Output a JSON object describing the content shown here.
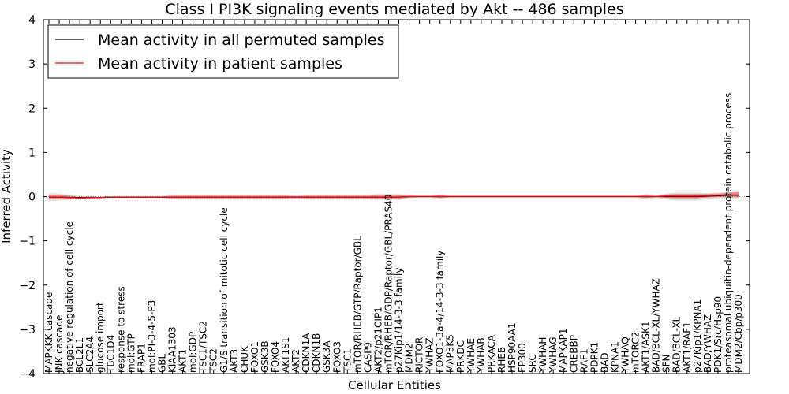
{
  "chart_data": {
    "type": "line",
    "title": "Class I PI3K signaling events mediated by Akt -- 486 samples",
    "xlabel": "Cellular Entities",
    "ylabel": "Inferred Activity",
    "ylim": [
      -4,
      4
    ],
    "yticks": [
      "4",
      "3",
      "2",
      "1",
      "0",
      "−1",
      "−2",
      "−3",
      "−4"
    ],
    "ytick_values": [
      4,
      3,
      2,
      1,
      0,
      -1,
      -2,
      -3,
      -4
    ],
    "legend": {
      "placement": "top-left",
      "entries": [
        {
          "label": "Mean activity in all permuted samples",
          "color": "#000000"
        },
        {
          "label": "Mean activity in patient samples",
          "color": "#ff0000"
        }
      ]
    },
    "categories": [
      "MAPKKK cascade",
      "JNK cascade",
      "negative regulation of cell cycle",
      "BCL2L1",
      "SLC2A4",
      "glucose import",
      "TBC1D4",
      "response to stress",
      "mol:GTP",
      "FRAP1",
      "mol:PI-3-4-5-P3",
      "GBL",
      "KIAA1303",
      "AKT1",
      "mol:GDP",
      "TSC1/TSC2",
      "TSC2",
      "G1/S transition of mitotic cell cycle",
      "AKT3",
      "CHUK",
      "FOXO1",
      "GSK3B",
      "FOXO4",
      "AKT1S1",
      "AKT2",
      "CDKN1A",
      "CDKN1B",
      "GSK3A",
      "FOXO3",
      "TSC1",
      "mTOR/RHEB/GTP/Raptor/GBL",
      "CASP9",
      "AKT2/p21CIP1",
      "mTOR/RHEB/GDP/Raptor/GBL/PRAS40",
      "p27Kip1/14-3-3 family",
      "MDM2",
      "RICTOR",
      "YWHAZ",
      "FOXO1-3a-4/14-3-3 family",
      "MAP3K5",
      "PRKDC",
      "YWHAE",
      "YWHAB",
      "PRKACA",
      "RHEB",
      "HSP90AA1",
      "EP300",
      "SRC",
      "YWHAH",
      "YWHAG",
      "MAPKAP1",
      "CREBBP",
      "RAF1",
      "PDPK1",
      "BAD",
      "KPNA1",
      "YWHAQ",
      "mTORC2",
      "AKT1/ASK1",
      "BAD/BCL-XL/YWHAZ",
      "SFN",
      "BAD/BCL-XL",
      "AKT1/RAF1",
      "p27Kip1/KPNA1",
      "BAD/YWHAZ",
      "PDK1/Src/Hsp90",
      "proteasomal ubiquitin-dependent protein catabolic process",
      "MDM2/Cbp/p300"
    ],
    "series": [
      {
        "name": "Mean activity in patient samples",
        "color": "#ff0000",
        "values": [
          -0.01,
          -0.01,
          -0.02,
          -0.03,
          -0.02,
          -0.02,
          -0.01,
          -0.01,
          -0.01,
          -0.01,
          -0.01,
          -0.01,
          -0.01,
          -0.01,
          -0.01,
          -0.01,
          -0.01,
          -0.01,
          -0.01,
          -0.01,
          -0.01,
          -0.01,
          -0.01,
          -0.01,
          -0.01,
          -0.01,
          -0.01,
          -0.01,
          -0.01,
          -0.01,
          -0.01,
          -0.01,
          -0.01,
          -0.01,
          -0.01,
          0.0,
          0.0,
          0.0,
          0.0,
          0.0,
          0.0,
          0.0,
          0.0,
          0.0,
          0.0,
          0.0,
          0.0,
          0.0,
          0.0,
          0.0,
          0.0,
          0.0,
          0.0,
          0.0,
          0.0,
          0.0,
          0.0,
          0.0,
          0.0,
          0.0,
          0.01,
          0.01,
          0.01,
          0.01,
          0.02,
          0.03,
          0.04,
          0.04
        ],
        "band": [
          0.05,
          0.05,
          0.04,
          0.02,
          0.02,
          0.01,
          0.01,
          0.01,
          0.01,
          0.01,
          0.01,
          0.01,
          0.03,
          0.03,
          0.03,
          0.03,
          0.03,
          0.03,
          0.03,
          0.03,
          0.03,
          0.03,
          0.03,
          0.03,
          0.02,
          0.03,
          0.03,
          0.03,
          0.03,
          0.03,
          0.03,
          0.03,
          0.04,
          0.04,
          0.04,
          0.02,
          0.01,
          0.01,
          0.03,
          0.01,
          0.01,
          0.01,
          0.01,
          0.01,
          0.01,
          0.01,
          0.01,
          0.01,
          0.01,
          0.01,
          0.01,
          0.01,
          0.01,
          0.01,
          0.01,
          0.01,
          0.01,
          0.01,
          0.03,
          0.01,
          0.04,
          0.05,
          0.05,
          0.05,
          0.04,
          0.04,
          0.05,
          0.06
        ]
      },
      {
        "name": "Mean activity in all permuted samples",
        "color": "#000000",
        "values": [
          -0.01,
          -0.01,
          -0.02,
          -0.02,
          -0.02,
          -0.02,
          -0.01,
          -0.01,
          -0.01,
          -0.01,
          -0.01,
          -0.01,
          -0.01,
          -0.01,
          -0.01,
          -0.01,
          -0.01,
          -0.01,
          -0.01,
          -0.01,
          -0.01,
          -0.01,
          -0.01,
          -0.01,
          -0.01,
          -0.01,
          -0.01,
          -0.01,
          -0.01,
          -0.01,
          -0.01,
          -0.01,
          -0.01,
          -0.01,
          -0.01,
          0.0,
          0.0,
          0.0,
          0.0,
          0.0,
          0.0,
          0.0,
          0.0,
          0.0,
          0.0,
          0.0,
          0.0,
          0.0,
          0.0,
          0.0,
          0.0,
          0.0,
          0.0,
          0.0,
          0.0,
          0.0,
          0.0,
          0.0,
          0.0,
          0.0,
          0.0,
          0.0,
          0.0,
          0.0,
          0.01,
          0.02,
          0.03,
          0.03
        ],
        "band": [
          0.09,
          0.08,
          0.06,
          0.04,
          0.03,
          0.02,
          0.02,
          0.02,
          0.02,
          0.02,
          0.02,
          0.02,
          0.06,
          0.06,
          0.06,
          0.06,
          0.06,
          0.06,
          0.06,
          0.06,
          0.06,
          0.06,
          0.06,
          0.06,
          0.05,
          0.06,
          0.06,
          0.06,
          0.06,
          0.06,
          0.06,
          0.06,
          0.07,
          0.07,
          0.07,
          0.04,
          0.02,
          0.02,
          0.05,
          0.02,
          0.02,
          0.02,
          0.02,
          0.02,
          0.02,
          0.02,
          0.02,
          0.02,
          0.02,
          0.02,
          0.02,
          0.02,
          0.02,
          0.02,
          0.02,
          0.02,
          0.02,
          0.02,
          0.06,
          0.03,
          0.07,
          0.09,
          0.09,
          0.09,
          0.07,
          0.06,
          0.07,
          0.08
        ]
      }
    ]
  }
}
